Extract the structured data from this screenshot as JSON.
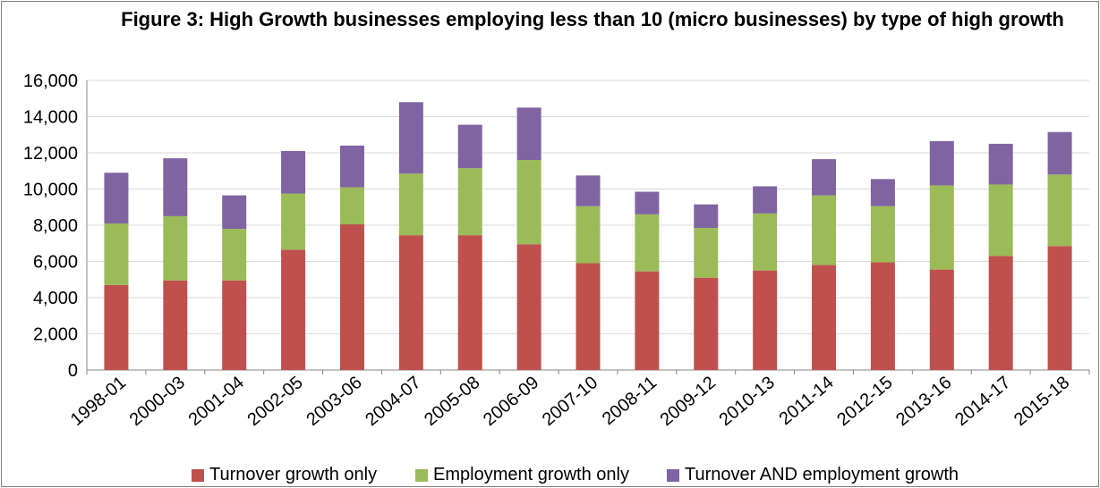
{
  "chart_data": {
    "type": "bar",
    "stacked": true,
    "title": "Figure 3: High Growth businesses employing less than 10 (micro businesses) by type of high growth",
    "xlabel": "",
    "ylabel": "",
    "ylim": [
      0,
      16000
    ],
    "yticks": [
      0,
      2000,
      4000,
      6000,
      8000,
      10000,
      12000,
      14000,
      16000
    ],
    "ytick_labels": [
      "0",
      "2,000",
      "4,000",
      "6,000",
      "8,000",
      "10,000",
      "12,000",
      "14,000",
      "16,000"
    ],
    "grid": true,
    "legend_position": "bottom",
    "categories": [
      "1998-01",
      "2000-03",
      "2001-04",
      "2002-05",
      "2003-06",
      "2004-07",
      "2005-08",
      "2006-09",
      "2007-10",
      "2008-11",
      "2009-12",
      "2010-13",
      "2011-14",
      "2012-15",
      "2013-16",
      "2014-17",
      "2015-18"
    ],
    "series": [
      {
        "name": "Turnover growth only",
        "color": "#c0504d",
        "values": [
          4700,
          4950,
          4950,
          6650,
          8050,
          7450,
          7450,
          6950,
          5900,
          5450,
          5100,
          5500,
          5800,
          5950,
          5550,
          6300,
          6850
        ]
      },
      {
        "name": "Employment growth only",
        "color": "#9bbb59",
        "values": [
          3400,
          3550,
          2850,
          3100,
          2050,
          3400,
          3700,
          4650,
          3150,
          3150,
          2750,
          3150,
          3850,
          3100,
          4650,
          3950,
          3950
        ]
      },
      {
        "name": "Turnover AND employment growth",
        "color": "#8064a2",
        "values": [
          2800,
          3200,
          1850,
          2350,
          2300,
          3950,
          2400,
          2900,
          1700,
          1250,
          1300,
          1500,
          2000,
          1500,
          2450,
          2250,
          2350
        ]
      }
    ]
  }
}
